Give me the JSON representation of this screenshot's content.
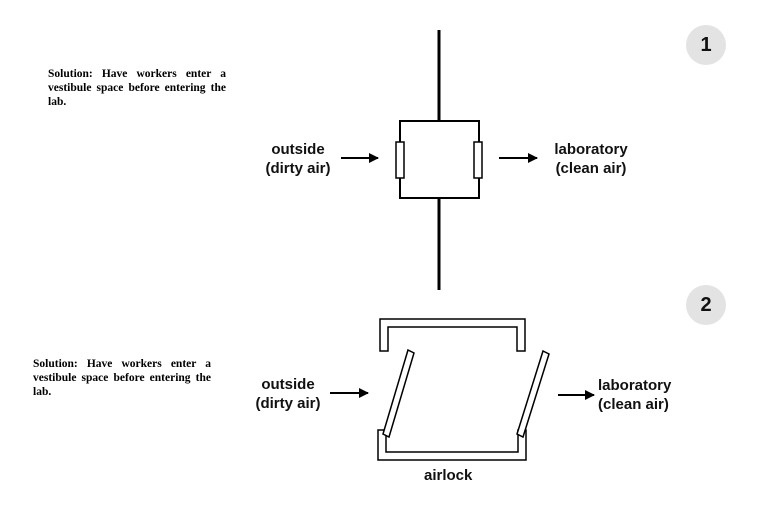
{
  "panel1": {
    "badge": "1",
    "solution_text": "Solution: Have workers enter a vestibule space before entering the lab.",
    "outside_line1": "outside",
    "outside_line2": "(dirty air)",
    "lab_line1": "laboratory",
    "lab_line2": "(clean air)"
  },
  "panel2": {
    "badge": "2",
    "solution_text": "Solution: Have workers enter a vestibule space before entering the lab.",
    "outside_line1": "outside",
    "outside_line2": "(dirty air)",
    "lab_line1": "laboratory",
    "lab_line2": "(clean air)",
    "airlock_label": "airlock"
  }
}
